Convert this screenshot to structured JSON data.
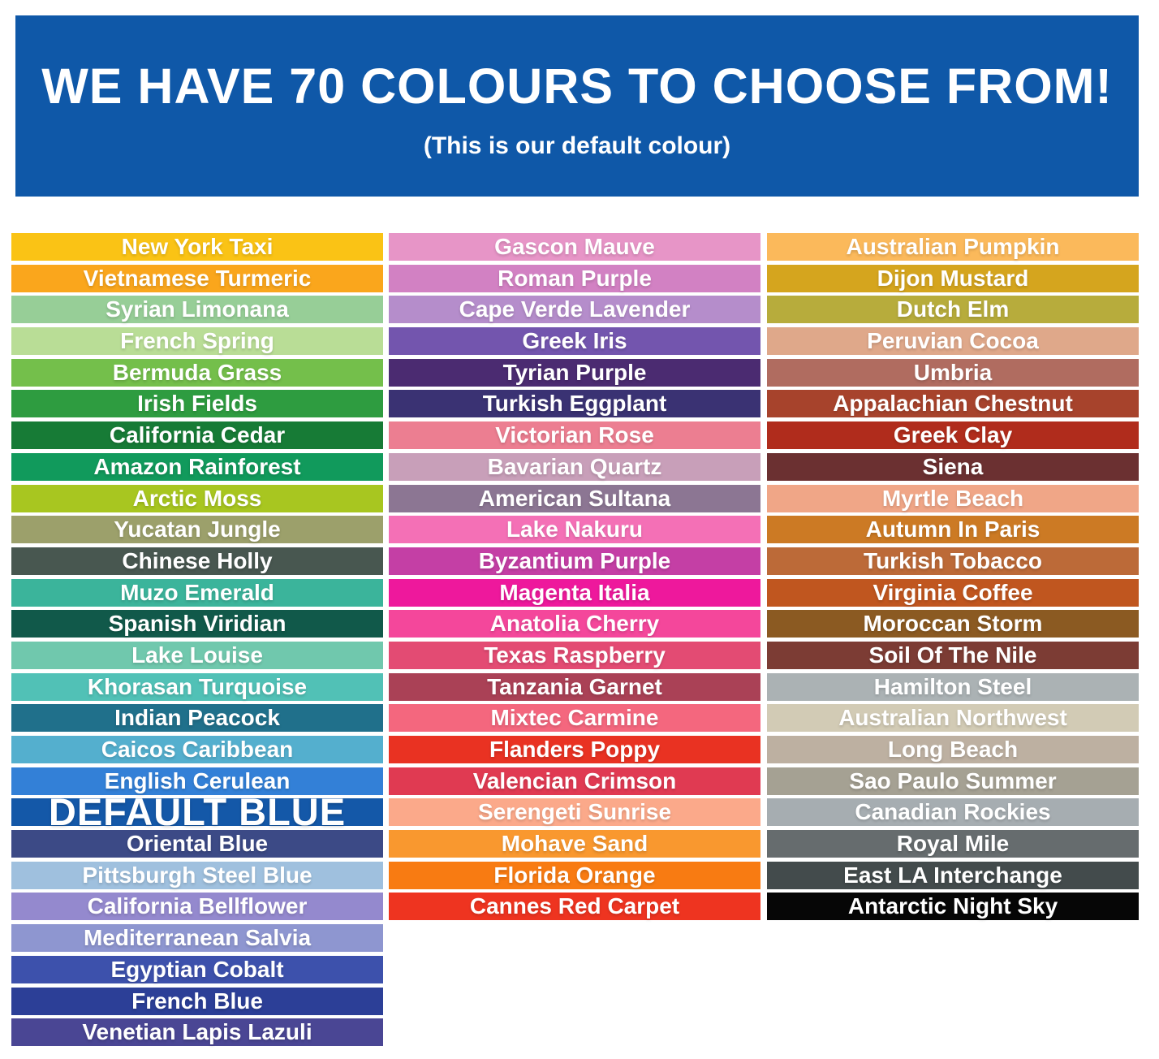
{
  "header": {
    "title": "WE HAVE 70 COLOURS TO CHOOSE FROM!",
    "subtitle": "(This is our default colour)",
    "background": "#0F58A8",
    "text_color": "#FFFFFF"
  },
  "swatch_text_color": "#FFFFFF",
  "columns": [
    {
      "swatches": [
        {
          "label": "New York Taxi",
          "color": "#FAC315"
        },
        {
          "label": "Vietnamese Turmeric",
          "color": "#FAA61C"
        },
        {
          "label": "Syrian Limonana",
          "color": "#97CE97"
        },
        {
          "label": "French Spring",
          "color": "#B9DD96"
        },
        {
          "label": "Bermuda Grass",
          "color": "#74BF4B"
        },
        {
          "label": "Irish Fields",
          "color": "#2E9C40"
        },
        {
          "label": "California Cedar",
          "color": "#177B36"
        },
        {
          "label": "Amazon Rainforest",
          "color": "#119A5C"
        },
        {
          "label": "Arctic Moss",
          "color": "#A8C620"
        },
        {
          "label": "Yucatan Jungle",
          "color": "#9CA06B"
        },
        {
          "label": "Chinese Holly",
          "color": "#485750"
        },
        {
          "label": "Muzo Emerald",
          "color": "#3BB49B"
        },
        {
          "label": "Spanish Viridian",
          "color": "#11594A"
        },
        {
          "label": "Lake Louise",
          "color": "#70C8AD"
        },
        {
          "label": "Khorasan Turquoise",
          "color": "#51C1B6"
        },
        {
          "label": "Indian Peacock",
          "color": "#20708B"
        },
        {
          "label": "Caicos Caribbean",
          "color": "#54AFCE"
        },
        {
          "label": "English Cerulean",
          "color": "#3380D7"
        },
        {
          "label": "DEFAULT BLUE",
          "color": "#1458A8",
          "emphasis": true
        },
        {
          "label": "Oriental Blue",
          "color": "#3C4A86"
        },
        {
          "label": "Pittsburgh Steel Blue",
          "color": "#9FC0DE"
        },
        {
          "label": "California Bellflower",
          "color": "#9489CE"
        },
        {
          "label": "Mediterranean Salvia",
          "color": "#8E96D0"
        },
        {
          "label": "Egyptian Cobalt",
          "color": "#3D51AC"
        },
        {
          "label": "French Blue",
          "color": "#2C3F97"
        },
        {
          "label": "Venetian Lapis Lazuli",
          "color": "#4A4694"
        }
      ]
    },
    {
      "swatches": [
        {
          "label": "Gascon Mauve",
          "color": "#E795C7"
        },
        {
          "label": "Roman Purple",
          "color": "#D281C3"
        },
        {
          "label": "Cape Verde Lavender",
          "color": "#B58DCB"
        },
        {
          "label": "Greek Iris",
          "color": "#7355AE"
        },
        {
          "label": "Tyrian Purple",
          "color": "#4B2B71"
        },
        {
          "label": "Turkish Eggplant",
          "color": "#3A3273"
        },
        {
          "label": "Victorian Rose",
          "color": "#EC7E91"
        },
        {
          "label": "Bavarian Quartz",
          "color": "#C89FB9"
        },
        {
          "label": "American Sultana",
          "color": "#8C7693"
        },
        {
          "label": "Lake Nakuru",
          "color": "#F470B6"
        },
        {
          "label": "Byzantium Purple",
          "color": "#C43FA5"
        },
        {
          "label": "Magenta Italia",
          "color": "#EE189C"
        },
        {
          "label": "Anatolia Cherry",
          "color": "#F4479B"
        },
        {
          "label": "Texas Raspberry",
          "color": "#E34B73"
        },
        {
          "label": "Tanzania Garnet",
          "color": "#AA4156"
        },
        {
          "label": "Mixtec Carmine",
          "color": "#F4677E"
        },
        {
          "label": "Flanders Poppy",
          "color": "#E93222"
        },
        {
          "label": "Valencian Crimson",
          "color": "#E03A52"
        },
        {
          "label": "Serengeti Sunrise",
          "color": "#FBA98A"
        },
        {
          "label": "Mohave Sand",
          "color": "#F9982F"
        },
        {
          "label": "Florida Orange",
          "color": "#F87B12"
        },
        {
          "label": "Cannes Red Carpet",
          "color": "#EE3420"
        }
      ]
    },
    {
      "swatches": [
        {
          "label": "Australian Pumpkin",
          "color": "#FBB95B"
        },
        {
          "label": "Dijon Mustard",
          "color": "#D5A51E"
        },
        {
          "label": "Dutch Elm",
          "color": "#B7AC3C"
        },
        {
          "label": "Peruvian Cocoa",
          "color": "#DFA88A"
        },
        {
          "label": "Umbria",
          "color": "#B06C60"
        },
        {
          "label": "Appalachian Chestnut",
          "color": "#A7432C"
        },
        {
          "label": "Greek Clay",
          "color": "#B02C1C"
        },
        {
          "label": "Siena",
          "color": "#6B3031"
        },
        {
          "label": "Myrtle Beach",
          "color": "#F0A687"
        },
        {
          "label": "Autumn In Paris",
          "color": "#CC7A24"
        },
        {
          "label": "Turkish Tobacco",
          "color": "#BC6A38"
        },
        {
          "label": "Virginia Coffee",
          "color": "#C0561F"
        },
        {
          "label": "Moroccan Storm",
          "color": "#8B5A22"
        },
        {
          "label": "Soil Of The Nile",
          "color": "#7C3C34"
        },
        {
          "label": "Hamilton Steel",
          "color": "#ABB2B4"
        },
        {
          "label": "Australian Northwest",
          "color": "#D2CBB5"
        },
        {
          "label": "Long Beach",
          "color": "#BDB0A1"
        },
        {
          "label": "Sao Paulo Summer",
          "color": "#A5A193"
        },
        {
          "label": "Canadian Rockies",
          "color": "#A6ADB1"
        },
        {
          "label": "Royal Mile",
          "color": "#666C6E"
        },
        {
          "label": "East LA Interchange",
          "color": "#434B4C"
        },
        {
          "label": "Antarctic Night Sky",
          "color": "#060606"
        }
      ]
    }
  ]
}
